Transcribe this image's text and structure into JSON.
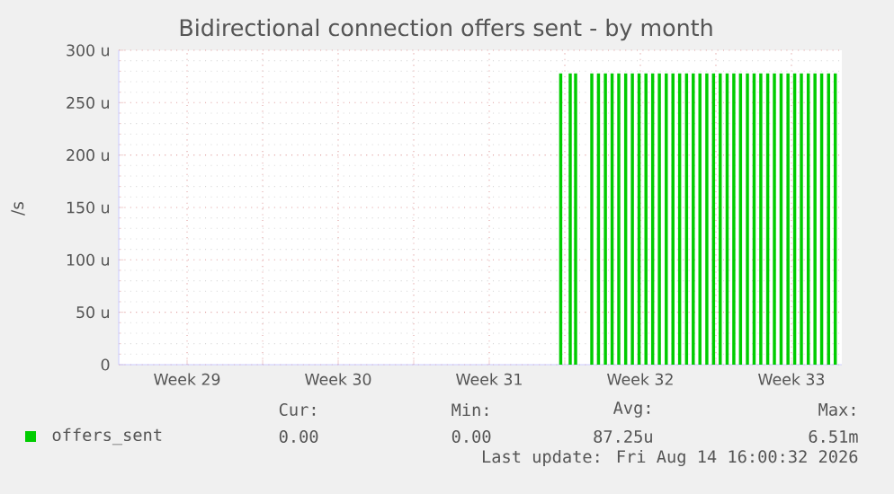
{
  "chart_data": {
    "type": "bar",
    "title": "Bidirectional connection offers sent - by month",
    "ylabel": "/s",
    "x": [
      "2026-08-01T19:26",
      "2026-08-02T06:00",
      "2026-08-02T12:00",
      "2026-08-03T06:00",
      "2026-08-03T13:26",
      "2026-08-03T21:07",
      "2026-08-04T04:34",
      "2026-08-04T12:00",
      "2026-08-04T19:41",
      "2026-08-05T03:07",
      "2026-08-05T10:34",
      "2026-08-05T18:14",
      "2026-08-06T01:41",
      "2026-08-06T09:07",
      "2026-08-06T16:48",
      "2026-08-07T00:14",
      "2026-08-07T07:41",
      "2026-08-07T15:22",
      "2026-08-07T22:48",
      "2026-08-08T06:14",
      "2026-08-08T13:55",
      "2026-08-08T21:22",
      "2026-08-09T04:48",
      "2026-08-09T12:29",
      "2026-08-09T19:55",
      "2026-08-10T03:22",
      "2026-08-10T11:02",
      "2026-08-10T18:29",
      "2026-08-11T01:55",
      "2026-08-11T09:36",
      "2026-08-11T17:02",
      "2026-08-12T00:29",
      "2026-08-12T08:10",
      "2026-08-12T15:36",
      "2026-08-12T23:02",
      "2026-08-13T06:43",
      "2026-08-13T14:10",
      "2026-08-13T21:36",
      "2026-08-14T05:17",
      "2026-08-14T12:43"
    ],
    "series": [
      {
        "name": "offers_sent",
        "color": "#00cc00",
        "values": [
          278,
          278,
          278,
          278,
          278,
          278,
          278,
          278,
          278,
          278,
          278,
          278,
          278,
          278,
          278,
          278,
          278,
          278,
          278,
          278,
          278,
          278,
          278,
          278,
          278,
          278,
          278,
          278,
          278,
          278,
          278,
          278,
          278,
          278,
          278,
          278,
          278,
          278,
          278,
          278
        ]
      }
    ],
    "xlim": [
      "2026-07-12T08:00",
      "2026-08-14T20:00"
    ],
    "ylim": [
      0,
      300
    ],
    "xticks": [
      {
        "value": "2026-07-15T12:00",
        "label": "Week 29"
      },
      {
        "value": "2026-07-19",
        "label": null
      },
      {
        "value": "2026-07-22T12:00",
        "label": "Week 30"
      },
      {
        "value": "2026-07-26",
        "label": null
      },
      {
        "value": "2026-07-29T12:00",
        "label": "Week 31"
      },
      {
        "value": "2026-08-02",
        "label": null
      },
      {
        "value": "2026-08-05T12:00",
        "label": "Week 32"
      },
      {
        "value": "2026-08-09",
        "label": null
      },
      {
        "value": "2026-08-12T12:00",
        "label": "Week 33"
      }
    ],
    "yticks": [
      {
        "value": 0,
        "label": "0"
      },
      {
        "value": 50,
        "label": "50 u"
      },
      {
        "value": 100,
        "label": "100 u"
      },
      {
        "value": 150,
        "label": "150 u"
      },
      {
        "value": 200,
        "label": "200 u"
      },
      {
        "value": 250,
        "label": "250 u"
      },
      {
        "value": 300,
        "label": "300 u"
      }
    ],
    "grid": true,
    "legend": "bottom",
    "annotations": [
      "Cur:",
      "Min:",
      "Avg:",
      "Max:",
      "0.00",
      "0.00",
      "87.25u",
      "6.51m",
      "Last update: Fri Aug 14 16:00:32 2026"
    ]
  }
}
